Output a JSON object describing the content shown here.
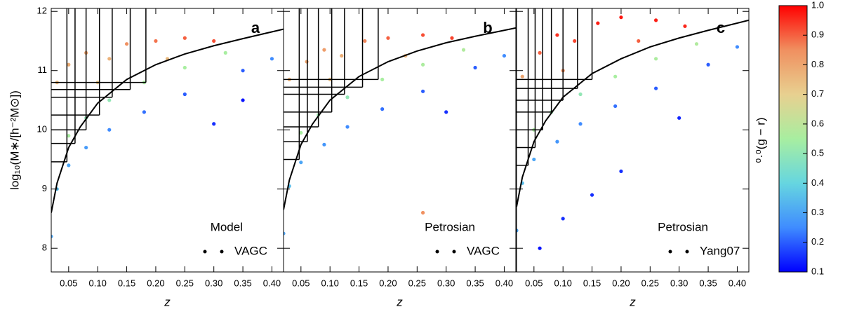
{
  "chart_data": [
    {
      "type": "scatter",
      "ylabel": "log₁₀(M∗/[h⁻²M⊙])",
      "xlabel": "z",
      "panel_label": "a",
      "texts": [
        "Model",
        "VAGC"
      ],
      "xlim": [
        0.02,
        0.42
      ],
      "ylim": [
        7.6,
        12.05
      ],
      "xticks": [
        0.05,
        {
          "value": 0.1,
          "label": "0.10"
        },
        0.15,
        {
          "value": 0.2,
          "label": "0.20"
        },
        0.25,
        {
          "value": 0.3,
          "label": "0.30"
        },
        0.35,
        {
          "value": 0.4,
          "label": "0.40"
        }
      ],
      "yticks": [
        8,
        9,
        10,
        11,
        12
      ],
      "points": {
        "x": [
          0.03,
          0.05,
          0.08,
          0.12,
          0.15,
          0.2,
          0.25,
          0.3,
          0.22,
          0.1,
          0.05,
          0.08,
          0.12,
          0.18,
          0.25,
          0.32,
          0.03,
          0.05,
          0.08,
          0.12,
          0.18,
          0.25,
          0.35,
          0.4,
          0.02,
          0.3,
          0.35
        ],
        "y": [
          10.8,
          11.1,
          11.3,
          11.2,
          11.45,
          11.5,
          11.55,
          11.5,
          11.2,
          10.8,
          9.9,
          10.2,
          10.5,
          10.8,
          11.05,
          11.3,
          9.0,
          9.4,
          9.7,
          10.0,
          10.3,
          10.6,
          11.0,
          11.2,
          8.2,
          10.1,
          10.5
        ],
        "c": [
          0.75,
          0.78,
          0.8,
          0.77,
          0.85,
          0.88,
          0.9,
          0.92,
          0.75,
          0.72,
          0.55,
          0.5,
          0.5,
          0.55,
          0.55,
          0.55,
          0.35,
          0.3,
          0.28,
          0.25,
          0.22,
          0.2,
          0.2,
          0.25,
          0.3,
          0.15,
          0.12
        ]
      },
      "curve": {
        "x": [
          0.02,
          0.03,
          0.05,
          0.07,
          0.1,
          0.15,
          0.2,
          0.25,
          0.3,
          0.35,
          0.42
        ],
        "y": [
          8.6,
          9.1,
          9.7,
          10.05,
          10.45,
          10.85,
          11.1,
          11.28,
          11.42,
          11.54,
          11.7
        ]
      },
      "samples": {
        "z": [
          0.047,
          0.061,
          0.08,
          0.103,
          0.125,
          0.156,
          0.183
        ],
        "mass": [
          9.46,
          9.77,
          10.0,
          10.25,
          10.55,
          10.68,
          10.8
        ]
      }
    },
    {
      "type": "scatter",
      "xlabel": "z",
      "panel_label": "b",
      "texts": [
        "Petrosian",
        "VAGC"
      ],
      "xlim": [
        0.02,
        0.42
      ],
      "ylim": [
        7.6,
        12.05
      ],
      "xticks": [
        0.05,
        {
          "value": 0.1,
          "label": "0.10"
        },
        0.15,
        {
          "value": 0.2,
          "label": "0.20"
        },
        0.25,
        {
          "value": 0.3,
          "label": "0.30"
        },
        0.35,
        {
          "value": 0.4,
          "label": "0.40"
        }
      ],
      "yticks": [
        8,
        9,
        10,
        11,
        12
      ],
      "points": {
        "x": [
          0.03,
          0.06,
          0.09,
          0.12,
          0.16,
          0.2,
          0.26,
          0.31,
          0.23,
          0.1,
          0.05,
          0.08,
          0.13,
          0.19,
          0.26,
          0.33,
          0.03,
          0.05,
          0.09,
          0.13,
          0.19,
          0.26,
          0.35,
          0.4,
          0.02,
          0.26,
          0.3
        ],
        "y": [
          10.85,
          11.15,
          11.35,
          11.25,
          11.5,
          11.55,
          11.6,
          11.55,
          11.25,
          10.85,
          9.95,
          10.25,
          10.55,
          10.85,
          11.1,
          11.35,
          9.05,
          9.45,
          9.75,
          10.05,
          10.35,
          10.65,
          11.05,
          11.25,
          8.25,
          8.6,
          10.3
        ],
        "c": [
          0.77,
          0.8,
          0.82,
          0.78,
          0.86,
          0.9,
          0.92,
          0.93,
          0.76,
          0.74,
          0.55,
          0.52,
          0.5,
          0.55,
          0.56,
          0.57,
          0.35,
          0.3,
          0.27,
          0.25,
          0.22,
          0.2,
          0.2,
          0.25,
          0.3,
          0.85,
          0.15
        ]
      },
      "curve": {
        "x": [
          0.02,
          0.03,
          0.05,
          0.07,
          0.1,
          0.15,
          0.2,
          0.25,
          0.3,
          0.35,
          0.42
        ],
        "y": [
          8.65,
          9.15,
          9.75,
          10.1,
          10.5,
          10.9,
          11.15,
          11.33,
          11.47,
          11.58,
          11.72
        ]
      },
      "samples": {
        "z": [
          0.047,
          0.061,
          0.08,
          0.103,
          0.125,
          0.156,
          0.183
        ],
        "mass": [
          9.5,
          9.8,
          10.05,
          10.3,
          10.6,
          10.72,
          10.85
        ]
      }
    },
    {
      "type": "scatter",
      "xlabel": "z",
      "panel_label": "c",
      "texts": [
        "Petrosian",
        "Yang07"
      ],
      "xlim": [
        0.02,
        0.42
      ],
      "ylim": [
        7.6,
        12.05
      ],
      "xticks": [
        0.05,
        {
          "value": 0.1,
          "label": "0.10"
        },
        0.15,
        {
          "value": 0.2,
          "label": "0.20"
        },
        0.25,
        {
          "value": 0.3,
          "label": "0.30"
        },
        0.35,
        {
          "value": 0.4,
          "label": "0.40"
        }
      ],
      "yticks": [
        8,
        9,
        10,
        11,
        12
      ],
      "points": {
        "x": [
          0.03,
          0.06,
          0.09,
          0.12,
          0.16,
          0.2,
          0.26,
          0.31,
          0.23,
          0.1,
          0.05,
          0.08,
          0.13,
          0.19,
          0.26,
          0.33,
          0.03,
          0.05,
          0.09,
          0.13,
          0.19,
          0.26,
          0.35,
          0.4,
          0.02,
          0.1,
          0.15,
          0.2,
          0.06,
          0.3
        ],
        "y": [
          10.9,
          11.3,
          11.6,
          11.5,
          11.8,
          11.9,
          11.85,
          11.75,
          11.5,
          11.0,
          10.0,
          10.3,
          10.6,
          10.9,
          11.2,
          11.45,
          9.1,
          9.5,
          9.8,
          10.1,
          10.4,
          10.7,
          11.1,
          11.4,
          8.3,
          8.5,
          8.9,
          9.3,
          8.0,
          10.2
        ],
        "c": [
          0.8,
          0.9,
          0.95,
          0.93,
          0.97,
          0.98,
          0.97,
          0.96,
          0.9,
          0.85,
          0.55,
          0.52,
          0.5,
          0.55,
          0.56,
          0.57,
          0.35,
          0.3,
          0.27,
          0.25,
          0.22,
          0.2,
          0.2,
          0.25,
          0.3,
          0.15,
          0.15,
          0.15,
          0.12,
          0.14
        ]
      },
      "curve": {
        "x": [
          0.02,
          0.03,
          0.05,
          0.07,
          0.1,
          0.15,
          0.2,
          0.25,
          0.3,
          0.35,
          0.42
        ],
        "y": [
          8.7,
          9.2,
          9.8,
          10.15,
          10.55,
          10.95,
          11.2,
          11.4,
          11.55,
          11.68,
          11.85
        ]
      },
      "samples": {
        "z": [
          0.04,
          0.052,
          0.065,
          0.08,
          0.1,
          0.125,
          0.15
        ],
        "mass": [
          9.4,
          9.7,
          10.0,
          10.3,
          10.5,
          10.7,
          10.85
        ]
      }
    }
  ],
  "colorbar": {
    "label": "⁰·⁰(g − r)",
    "lim": [
      0.1,
      1.0
    ],
    "ticks": [
      0.1,
      0.2,
      0.3,
      0.4,
      0.5,
      0.6,
      0.7,
      0.8,
      0.9,
      {
        "value": 1.0,
        "label": "1.0"
      }
    ],
    "colormap": [
      "#0000ff",
      "#3f8cff",
      "#66d6e0",
      "#a8eea0",
      "#e8d090",
      "#f09060",
      "#ff0000"
    ]
  }
}
